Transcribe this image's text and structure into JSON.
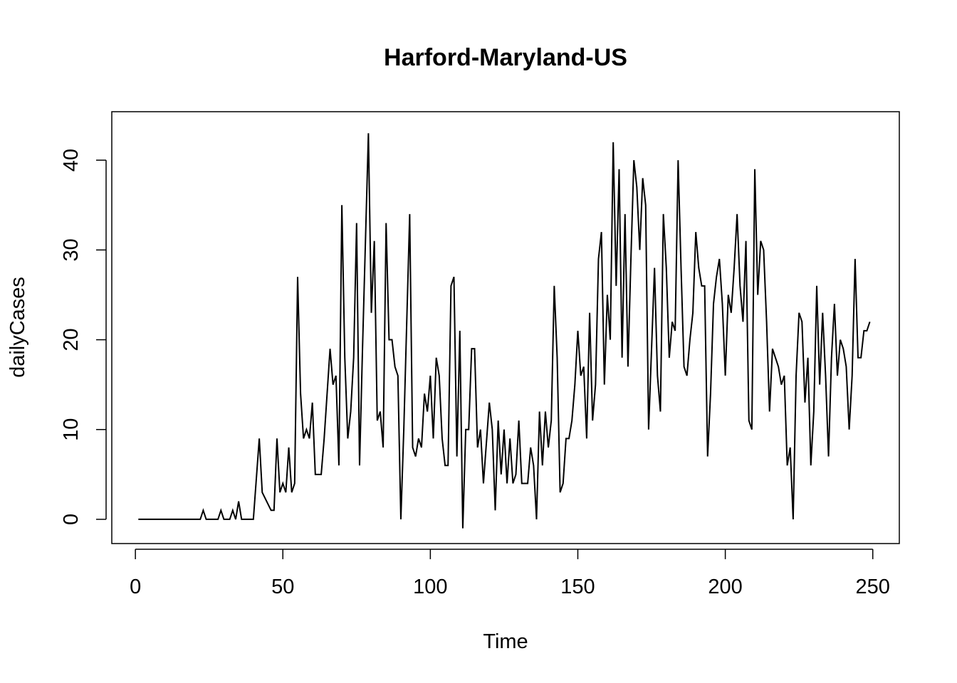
{
  "chart_data": {
    "type": "line",
    "title": "Harford-Maryland-US",
    "xlabel": "Time",
    "ylabel": "dailyCases",
    "xlim": [
      -8,
      259
    ],
    "ylim": [
      -2.7,
      45.4
    ],
    "xticks": [
      0,
      50,
      100,
      150,
      200,
      250
    ],
    "yticks": [
      0,
      10,
      20,
      30,
      40
    ],
    "grid": false,
    "line_color": "#000000",
    "series": [
      {
        "points": [
          [
            1,
            0
          ],
          [
            5,
            0
          ],
          [
            10,
            0
          ],
          [
            15,
            0
          ],
          [
            20,
            0
          ],
          [
            22,
            0
          ],
          [
            23,
            1
          ],
          [
            24,
            0
          ],
          [
            28,
            0
          ],
          [
            29,
            1
          ],
          [
            30,
            0
          ],
          [
            32,
            0
          ],
          [
            33,
            1
          ],
          [
            34,
            0
          ],
          [
            35,
            2
          ],
          [
            36,
            0
          ],
          [
            40,
            0
          ],
          [
            42,
            9
          ],
          [
            43,
            3
          ],
          [
            46,
            1
          ],
          [
            47,
            1
          ],
          [
            48,
            9
          ],
          [
            49,
            3
          ],
          [
            50,
            4
          ],
          [
            51,
            3
          ],
          [
            52,
            8
          ],
          [
            53,
            3
          ],
          [
            54,
            4
          ],
          [
            55,
            27
          ],
          [
            56,
            14
          ],
          [
            57,
            9
          ],
          [
            58,
            10
          ],
          [
            59,
            9
          ],
          [
            60,
            13
          ],
          [
            61,
            5
          ],
          [
            62,
            5
          ],
          [
            63,
            5
          ],
          [
            64,
            9
          ],
          [
            66,
            19
          ],
          [
            67,
            15
          ],
          [
            68,
            16
          ],
          [
            69,
            6
          ],
          [
            70,
            35
          ],
          [
            71,
            18
          ],
          [
            72,
            9
          ],
          [
            73,
            12
          ],
          [
            74,
            18
          ],
          [
            75,
            33
          ],
          [
            76,
            6
          ],
          [
            77,
            19
          ],
          [
            78,
            31
          ],
          [
            79,
            43
          ],
          [
            80,
            23
          ],
          [
            81,
            31
          ],
          [
            82,
            11
          ],
          [
            83,
            12
          ],
          [
            84,
            8
          ],
          [
            85,
            33
          ],
          [
            86,
            20
          ],
          [
            87,
            20
          ],
          [
            88,
            17
          ],
          [
            89,
            16
          ],
          [
            90,
            0
          ],
          [
            91,
            10
          ],
          [
            92,
            22
          ],
          [
            93,
            34
          ],
          [
            94,
            8
          ],
          [
            95,
            7
          ],
          [
            96,
            9
          ],
          [
            97,
            8
          ],
          [
            98,
            14
          ],
          [
            99,
            12
          ],
          [
            100,
            16
          ],
          [
            101,
            9
          ],
          [
            102,
            18
          ],
          [
            103,
            16
          ],
          [
            104,
            9
          ],
          [
            105,
            6
          ],
          [
            106,
            6
          ],
          [
            107,
            26
          ],
          [
            108,
            27
          ],
          [
            109,
            7
          ],
          [
            110,
            21
          ],
          [
            111,
            -1
          ],
          [
            112,
            10
          ],
          [
            113,
            10
          ],
          [
            114,
            19
          ],
          [
            115,
            19
          ],
          [
            116,
            8
          ],
          [
            117,
            10
          ],
          [
            118,
            4
          ],
          [
            120,
            13
          ],
          [
            121,
            10
          ],
          [
            122,
            1
          ],
          [
            123,
            11
          ],
          [
            124,
            5
          ],
          [
            125,
            10
          ],
          [
            126,
            4
          ],
          [
            127,
            9
          ],
          [
            128,
            4
          ],
          [
            129,
            5
          ],
          [
            130,
            11
          ],
          [
            131,
            4
          ],
          [
            132,
            4
          ],
          [
            133,
            4
          ],
          [
            134,
            8
          ],
          [
            135,
            6
          ],
          [
            136,
            0
          ],
          [
            137,
            12
          ],
          [
            138,
            6
          ],
          [
            139,
            12
          ],
          [
            140,
            8
          ],
          [
            141,
            11
          ],
          [
            142,
            26
          ],
          [
            143,
            18
          ],
          [
            144,
            3
          ],
          [
            145,
            4
          ],
          [
            146,
            9
          ],
          [
            147,
            9
          ],
          [
            148,
            11
          ],
          [
            149,
            15
          ],
          [
            150,
            21
          ],
          [
            151,
            16
          ],
          [
            152,
            17
          ],
          [
            153,
            9
          ],
          [
            154,
            23
          ],
          [
            155,
            11
          ],
          [
            156,
            15
          ],
          [
            157,
            29
          ],
          [
            158,
            32
          ],
          [
            159,
            15
          ],
          [
            160,
            25
          ],
          [
            161,
            20
          ],
          [
            162,
            42
          ],
          [
            163,
            26
          ],
          [
            164,
            39
          ],
          [
            165,
            18
          ],
          [
            166,
            34
          ],
          [
            167,
            17
          ],
          [
            168,
            29
          ],
          [
            169,
            40
          ],
          [
            170,
            37
          ],
          [
            171,
            30
          ],
          [
            172,
            38
          ],
          [
            173,
            35
          ],
          [
            174,
            10
          ],
          [
            175,
            19
          ],
          [
            176,
            28
          ],
          [
            177,
            16
          ],
          [
            178,
            12
          ],
          [
            179,
            34
          ],
          [
            180,
            28
          ],
          [
            181,
            18
          ],
          [
            182,
            22
          ],
          [
            183,
            21
          ],
          [
            184,
            40
          ],
          [
            185,
            28
          ],
          [
            186,
            17
          ],
          [
            187,
            16
          ],
          [
            188,
            20
          ],
          [
            189,
            23
          ],
          [
            190,
            32
          ],
          [
            191,
            28
          ],
          [
            192,
            26
          ],
          [
            193,
            26
          ],
          [
            194,
            7
          ],
          [
            195,
            14
          ],
          [
            196,
            24
          ],
          [
            197,
            27
          ],
          [
            198,
            29
          ],
          [
            199,
            24
          ],
          [
            200,
            16
          ],
          [
            201,
            25
          ],
          [
            202,
            23
          ],
          [
            203,
            28
          ],
          [
            204,
            34
          ],
          [
            205,
            26
          ],
          [
            206,
            22
          ],
          [
            207,
            31
          ],
          [
            208,
            11
          ],
          [
            209,
            10
          ],
          [
            210,
            39
          ],
          [
            211,
            25
          ],
          [
            212,
            31
          ],
          [
            213,
            30
          ],
          [
            214,
            22
          ],
          [
            215,
            12
          ],
          [
            216,
            19
          ],
          [
            217,
            18
          ],
          [
            218,
            17
          ],
          [
            219,
            15
          ],
          [
            220,
            16
          ],
          [
            221,
            6
          ],
          [
            222,
            8
          ],
          [
            223,
            0
          ],
          [
            224,
            16
          ],
          [
            225,
            23
          ],
          [
            226,
            22
          ],
          [
            227,
            13
          ],
          [
            228,
            18
          ],
          [
            229,
            6
          ],
          [
            230,
            12
          ],
          [
            231,
            26
          ],
          [
            232,
            15
          ],
          [
            233,
            23
          ],
          [
            234,
            16
          ],
          [
            235,
            7
          ],
          [
            236,
            18
          ],
          [
            237,
            24
          ],
          [
            238,
            16
          ],
          [
            239,
            20
          ],
          [
            240,
            19
          ],
          [
            241,
            17
          ],
          [
            242,
            10
          ],
          [
            243,
            16
          ],
          [
            244,
            29
          ],
          [
            245,
            18
          ],
          [
            246,
            18
          ],
          [
            247,
            21
          ],
          [
            248,
            21
          ],
          [
            249,
            22
          ]
        ]
      }
    ]
  }
}
